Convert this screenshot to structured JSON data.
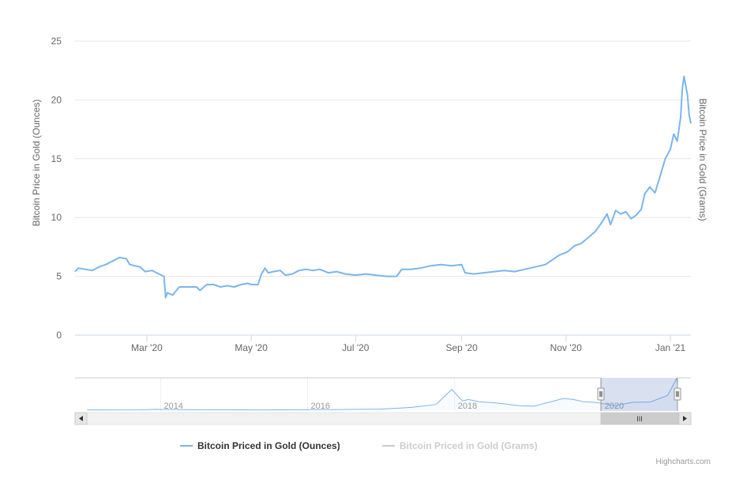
{
  "chart_data": {
    "type": "line",
    "title": "",
    "ylabel": "Bitcoin Price in Gold (Ounces)",
    "ylabel_right": "Bitcoin Price in Gold (Grams)",
    "ylim": [
      0,
      25
    ],
    "y_ticks": [
      "0",
      "5",
      "10",
      "15",
      "20",
      "25"
    ],
    "x_tick_labels": [
      "Mar '20",
      "May '20",
      "Jul '20",
      "Sep '20",
      "Nov '20",
      "Jan '21"
    ],
    "grid": true,
    "legend_position": "bottom-center",
    "series": [
      {
        "name": "Bitcoin Priced in Gold (Ounces)",
        "visible": true,
        "color": "#7cb5ec",
        "points": [
          [
            "2020-01-19",
            5.4
          ],
          [
            "2020-01-21",
            5.7
          ],
          [
            "2020-01-25",
            5.6
          ],
          [
            "2020-01-29",
            5.5
          ],
          [
            "2020-02-02",
            5.8
          ],
          [
            "2020-02-06",
            6.0
          ],
          [
            "2020-02-10",
            6.3
          ],
          [
            "2020-02-14",
            6.6
          ],
          [
            "2020-02-18",
            6.5
          ],
          [
            "2020-02-20",
            6.0
          ],
          [
            "2020-02-26",
            5.8
          ],
          [
            "2020-02-29",
            5.4
          ],
          [
            "2020-03-04",
            5.5
          ],
          [
            "2020-03-08",
            5.2
          ],
          [
            "2020-03-11",
            5.0
          ],
          [
            "2020-03-12",
            3.2
          ],
          [
            "2020-03-13",
            3.6
          ],
          [
            "2020-03-16",
            3.4
          ],
          [
            "2020-03-20",
            4.1
          ],
          [
            "2020-03-26",
            4.1
          ],
          [
            "2020-03-30",
            4.1
          ],
          [
            "2020-04-01",
            3.8
          ],
          [
            "2020-04-05",
            4.3
          ],
          [
            "2020-04-09",
            4.3
          ],
          [
            "2020-04-13",
            4.1
          ],
          [
            "2020-04-17",
            4.2
          ],
          [
            "2020-04-21",
            4.1
          ],
          [
            "2020-04-25",
            4.3
          ],
          [
            "2020-04-29",
            4.4
          ],
          [
            "2020-05-01",
            4.3
          ],
          [
            "2020-05-05",
            4.3
          ],
          [
            "2020-05-07",
            5.2
          ],
          [
            "2020-05-09",
            5.7
          ],
          [
            "2020-05-11",
            5.3
          ],
          [
            "2020-05-14",
            5.4
          ],
          [
            "2020-05-18",
            5.5
          ],
          [
            "2020-05-21",
            5.1
          ],
          [
            "2020-05-25",
            5.2
          ],
          [
            "2020-05-29",
            5.5
          ],
          [
            "2020-06-02",
            5.6
          ],
          [
            "2020-06-06",
            5.5
          ],
          [
            "2020-06-10",
            5.6
          ],
          [
            "2020-06-15",
            5.3
          ],
          [
            "2020-06-20",
            5.4
          ],
          [
            "2020-06-25",
            5.2
          ],
          [
            "2020-07-01",
            5.1
          ],
          [
            "2020-07-07",
            5.2
          ],
          [
            "2020-07-13",
            5.1
          ],
          [
            "2020-07-19",
            5.0
          ],
          [
            "2020-07-25",
            5.0
          ],
          [
            "2020-07-28",
            5.6
          ],
          [
            "2020-08-02",
            5.6
          ],
          [
            "2020-08-08",
            5.7
          ],
          [
            "2020-08-14",
            5.9
          ],
          [
            "2020-08-20",
            6.0
          ],
          [
            "2020-08-26",
            5.9
          ],
          [
            "2020-09-01",
            6.0
          ],
          [
            "2020-09-03",
            5.3
          ],
          [
            "2020-09-08",
            5.2
          ],
          [
            "2020-09-14",
            5.3
          ],
          [
            "2020-09-20",
            5.4
          ],
          [
            "2020-09-26",
            5.5
          ],
          [
            "2020-10-02",
            5.4
          ],
          [
            "2020-10-08",
            5.6
          ],
          [
            "2020-10-14",
            5.8
          ],
          [
            "2020-10-20",
            6.0
          ],
          [
            "2020-10-24",
            6.4
          ],
          [
            "2020-10-28",
            6.8
          ],
          [
            "2020-11-02",
            7.1
          ],
          [
            "2020-11-06",
            7.6
          ],
          [
            "2020-11-10",
            7.8
          ],
          [
            "2020-11-14",
            8.3
          ],
          [
            "2020-11-18",
            8.8
          ],
          [
            "2020-11-22",
            9.6
          ],
          [
            "2020-11-25",
            10.3
          ],
          [
            "2020-11-27",
            9.4
          ],
          [
            "2020-11-30",
            10.6
          ],
          [
            "2020-12-03",
            10.3
          ],
          [
            "2020-12-06",
            10.5
          ],
          [
            "2020-12-09",
            9.9
          ],
          [
            "2020-12-12",
            10.2
          ],
          [
            "2020-12-15",
            10.7
          ],
          [
            "2020-12-17",
            12.0
          ],
          [
            "2020-12-20",
            12.6
          ],
          [
            "2020-12-23",
            12.1
          ],
          [
            "2020-12-26",
            13.5
          ],
          [
            "2020-12-29",
            15.0
          ],
          [
            "2021-01-01",
            15.8
          ],
          [
            "2021-01-03",
            17.1
          ],
          [
            "2021-01-05",
            16.5
          ],
          [
            "2021-01-07",
            18.5
          ],
          [
            "2021-01-08",
            21.0
          ],
          [
            "2021-01-09",
            22.0
          ],
          [
            "2021-01-11",
            20.4
          ],
          [
            "2021-01-12",
            18.7
          ],
          [
            "2021-01-13",
            18.0
          ]
        ]
      },
      {
        "name": "Bitcoin Priced in Gold (Grams)",
        "visible": false,
        "color": "#cccccc",
        "points": []
      }
    ]
  },
  "navigator": {
    "year_labels": [
      "2014",
      "2016",
      "2018",
      "2020"
    ],
    "overview_series": [
      [
        "2013-01-01",
        0.2
      ],
      [
        "2013-10-01",
        0.3
      ],
      [
        "2013-12-01",
        0.6
      ],
      [
        "2014-03-01",
        0.5
      ],
      [
        "2014-09-01",
        0.35
      ],
      [
        "2015-06-01",
        0.2
      ],
      [
        "2016-06-01",
        0.5
      ],
      [
        "2017-01-01",
        0.8
      ],
      [
        "2017-06-01",
        2.0
      ],
      [
        "2017-10-01",
        4.0
      ],
      [
        "2017-12-18",
        14.5
      ],
      [
        "2018-01-10",
        11.0
      ],
      [
        "2018-02-10",
        6.5
      ],
      [
        "2018-03-10",
        7.5
      ],
      [
        "2018-05-01",
        6.0
      ],
      [
        "2018-08-01",
        5.0
      ],
      [
        "2018-11-20",
        3.2
      ],
      [
        "2019-02-01",
        2.8
      ],
      [
        "2019-06-25",
        8.2
      ],
      [
        "2019-08-15",
        7.5
      ],
      [
        "2019-10-01",
        6.0
      ],
      [
        "2019-12-01",
        5.5
      ],
      [
        "2020-03-12",
        3.2
      ],
      [
        "2020-06-01",
        5.5
      ],
      [
        "2020-09-01",
        5.8
      ],
      [
        "2020-11-25",
        10.3
      ],
      [
        "2021-01-09",
        22.0
      ],
      [
        "2021-01-13",
        18.0
      ]
    ],
    "scrollbar_grip": "III"
  },
  "legend": {
    "items": [
      {
        "label": "Bitcoin Priced in Gold (Ounces)",
        "active": true
      },
      {
        "label": "Bitcoin Priced in Gold (Grams)",
        "active": false
      }
    ]
  },
  "credits": "Highcharts.com"
}
